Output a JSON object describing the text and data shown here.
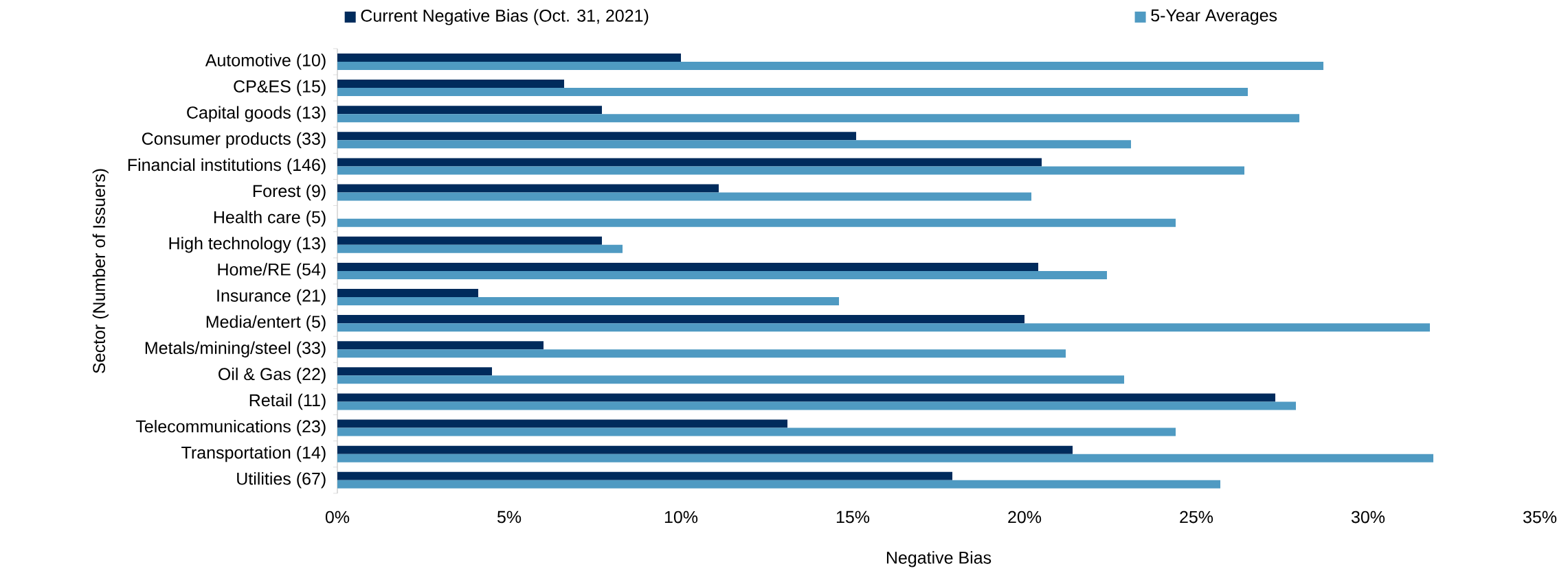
{
  "chart_data": {
    "type": "bar",
    "orientation": "horizontal",
    "xlabel": "Negative Bias",
    "ylabel": "Sector (Number of Issuers)",
    "categories": [
      "Automotive (10)",
      "CP&ES (15)",
      "Capital goods (13)",
      "Consumer products (33)",
      "Financial institutions (146)",
      "Forest (9)",
      "Health care (5)",
      "High technology (13)",
      "Home/RE (54)",
      "Insurance (21)",
      "Media/entert (5)",
      "Metals/mining/steel (33)",
      "Oil & Gas (22)",
      "Retail (11)",
      "Telecommunications (23)",
      "Transportation (14)",
      "Utilities (67)"
    ],
    "series": [
      {
        "name": "Current Negative Bias (Oct. 31, 2021)",
        "color": "#002b5c",
        "values": [
          10.0,
          6.6,
          7.7,
          15.1,
          20.5,
          11.1,
          null,
          7.7,
          20.4,
          4.1,
          20.0,
          6.0,
          4.5,
          27.3,
          13.1,
          21.4,
          17.9
        ]
      },
      {
        "name": "5-Year Averages",
        "color": "#4f9ac2",
        "values": [
          28.7,
          26.5,
          28.0,
          23.1,
          26.4,
          20.2,
          24.4,
          8.3,
          22.4,
          14.6,
          31.8,
          21.2,
          22.9,
          27.9,
          24.4,
          31.9,
          25.7
        ]
      }
    ],
    "xlim": [
      0,
      35
    ],
    "xticks": [
      {
        "value": 0,
        "label": "0%"
      },
      {
        "value": 5,
        "label": "5%"
      },
      {
        "value": 10,
        "label": "10%"
      },
      {
        "value": 15,
        "label": "15%"
      },
      {
        "value": 20,
        "label": "20%"
      },
      {
        "value": 25,
        "label": "25%"
      },
      {
        "value": 30,
        "label": "30%"
      },
      {
        "value": 35,
        "label": "35%"
      }
    ],
    "grid": false,
    "legend": "top"
  }
}
